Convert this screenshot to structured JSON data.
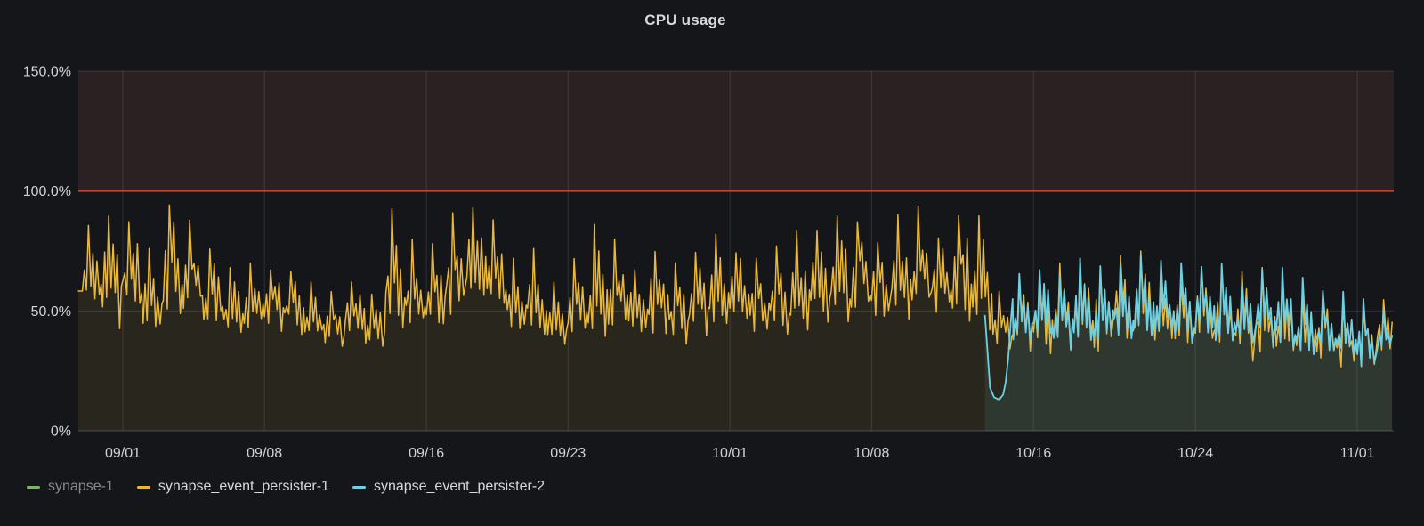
{
  "panel": {
    "title": "CPU usage"
  },
  "chart_data": {
    "type": "line",
    "title": "CPU usage",
    "xlabel": "",
    "ylabel": "",
    "y_unit": "percent",
    "y_range": [
      0,
      150
    ],
    "y_ticks": [
      {
        "v": 0,
        "label": "0%"
      },
      {
        "v": 50,
        "label": "50.0%"
      },
      {
        "v": 100,
        "label": "100.0%"
      },
      {
        "v": 150,
        "label": "150.0%"
      }
    ],
    "x_axis_note": "time, days relative to 09/01",
    "x_range_days": [
      -2.2,
      62.8
    ],
    "x_ticks": [
      {
        "day": 0,
        "label": "09/01"
      },
      {
        "day": 7,
        "label": "09/08"
      },
      {
        "day": 15,
        "label": "09/16"
      },
      {
        "day": 22,
        "label": "09/23"
      },
      {
        "day": 30,
        "label": "10/01"
      },
      {
        "day": 37,
        "label": "10/08"
      },
      {
        "day": 45,
        "label": "10/16"
      },
      {
        "day": 53,
        "label": "10/24"
      },
      {
        "day": 61,
        "label": "11/01"
      }
    ],
    "grid": true,
    "legend_position": "bottom-left",
    "threshold": {
      "value": 100,
      "line_color": "#bf4736",
      "region_color": "#2b2123",
      "region_to": 150
    },
    "series": [
      {
        "name": "synapse-1",
        "color": "#7EB26D",
        "visible": false,
        "daily_envelope_lo_hi": []
      },
      {
        "name": "synapse_event_persister-1",
        "color": "#EAB839",
        "visible": true,
        "fill_opacity": 0.1,
        "start_day": -2.2,
        "end_day": 62.8,
        "daily_envelope_lo_hi": [
          [
            -2,
            45,
            86
          ],
          [
            -1,
            38,
            95
          ],
          [
            0,
            42,
            96
          ],
          [
            1,
            36,
            76
          ],
          [
            2,
            40,
            100
          ],
          [
            3,
            42,
            88
          ],
          [
            4,
            38,
            78
          ],
          [
            5,
            35,
            68
          ],
          [
            6,
            36,
            70
          ],
          [
            7,
            38,
            72
          ],
          [
            8,
            36,
            71
          ],
          [
            9,
            34,
            62
          ],
          [
            10,
            32,
            58
          ],
          [
            11,
            36,
            65
          ],
          [
            12,
            30,
            60
          ],
          [
            13,
            34,
            94
          ],
          [
            14,
            38,
            80
          ],
          [
            15,
            36,
            78
          ],
          [
            16,
            40,
            92
          ],
          [
            17,
            40,
            103
          ],
          [
            18,
            42,
            88
          ],
          [
            19,
            36,
            72
          ],
          [
            20,
            34,
            76
          ],
          [
            21,
            30,
            62
          ],
          [
            22,
            32,
            78
          ],
          [
            23,
            34,
            86
          ],
          [
            24,
            36,
            80
          ],
          [
            25,
            34,
            72
          ],
          [
            26,
            35,
            78
          ],
          [
            27,
            30,
            70
          ],
          [
            28,
            33,
            76
          ],
          [
            29,
            35,
            82
          ],
          [
            30,
            37,
            80
          ],
          [
            31,
            35,
            72
          ],
          [
            32,
            36,
            78
          ],
          [
            33,
            35,
            84
          ],
          [
            34,
            38,
            88
          ],
          [
            35,
            40,
            91
          ],
          [
            36,
            42,
            93
          ],
          [
            37,
            38,
            84
          ],
          [
            38,
            40,
            90
          ],
          [
            39,
            42,
            95
          ],
          [
            40,
            40,
            88
          ],
          [
            41,
            38,
            97
          ],
          [
            42,
            35,
            90
          ],
          [
            43,
            28,
            62
          ],
          [
            44,
            30,
            65
          ],
          [
            45,
            29,
            68
          ],
          [
            46,
            30,
            70
          ],
          [
            47,
            29,
            72
          ],
          [
            48,
            27,
            70
          ],
          [
            49,
            29,
            73
          ],
          [
            50,
            31,
            75
          ],
          [
            51,
            29,
            70
          ],
          [
            52,
            27,
            68
          ],
          [
            53,
            29,
            72
          ],
          [
            54,
            27,
            70
          ],
          [
            55,
            25,
            68
          ],
          [
            56,
            27,
            70
          ],
          [
            57,
            25,
            64
          ],
          [
            58,
            24,
            60
          ],
          [
            59,
            23,
            58
          ],
          [
            60,
            21,
            55
          ],
          [
            61,
            24,
            52
          ],
          [
            62,
            28,
            56
          ]
        ]
      },
      {
        "name": "synapse_event_persister-2",
        "color": "#6ED0E0",
        "visible": true,
        "fill_opacity": 0.1,
        "start_day": 42.6,
        "end_day": 62.8,
        "lead_in_points": [
          [
            42.6,
            48
          ],
          [
            42.72,
            34
          ],
          [
            42.85,
            18
          ],
          [
            43.05,
            14
          ],
          [
            43.3,
            13
          ],
          [
            43.5,
            15
          ],
          [
            43.62,
            20
          ],
          [
            43.75,
            30
          ],
          [
            43.88,
            46
          ],
          [
            43.97,
            55
          ]
        ],
        "daily_envelope_lo_hi": [
          [
            44,
            30,
            66
          ],
          [
            45,
            32,
            70
          ],
          [
            46,
            30,
            68
          ],
          [
            47,
            32,
            72
          ],
          [
            48,
            30,
            70
          ],
          [
            49,
            33,
            74
          ],
          [
            50,
            34,
            75
          ],
          [
            51,
            32,
            72
          ],
          [
            52,
            30,
            70
          ],
          [
            53,
            32,
            72
          ],
          [
            54,
            30,
            70
          ],
          [
            55,
            28,
            68
          ],
          [
            56,
            30,
            72
          ],
          [
            57,
            28,
            68
          ],
          [
            58,
            26,
            64
          ],
          [
            59,
            25,
            62
          ],
          [
            60,
            23,
            58
          ],
          [
            61,
            22,
            55
          ],
          [
            62,
            26,
            52
          ]
        ]
      }
    ]
  },
  "legend": {
    "items": [
      {
        "label": "synapse-1",
        "color": "#7EB26D",
        "dimmed": true
      },
      {
        "label": "synapse_event_persister-1",
        "color": "#EAB839",
        "dimmed": false
      },
      {
        "label": "synapse_event_persister-2",
        "color": "#6ED0E0",
        "dimmed": false
      }
    ]
  }
}
